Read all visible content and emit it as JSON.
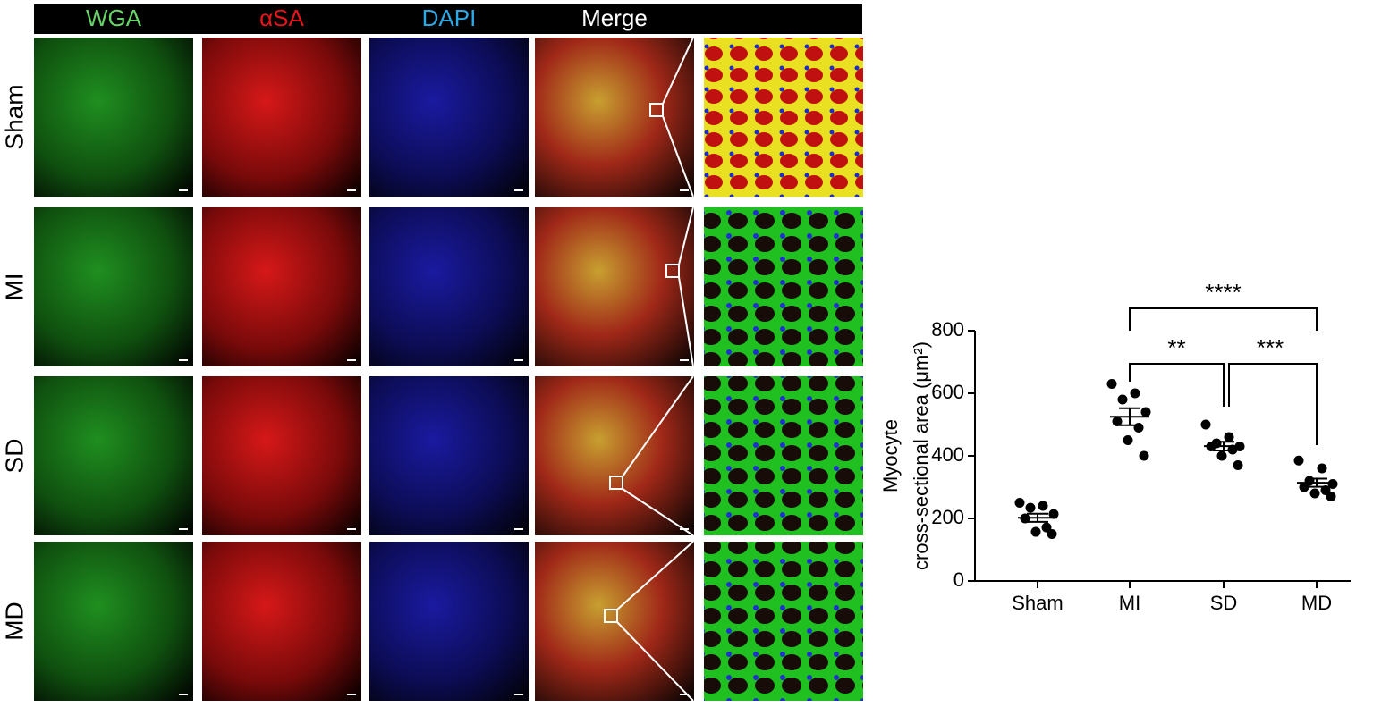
{
  "column_headers": [
    "WGA",
    "αSA",
    "DAPI",
    "Merge"
  ],
  "row_labels": [
    "Sham",
    "MI",
    "SD",
    "MD"
  ],
  "chart_data": {
    "type": "scatter",
    "y_label": [
      "Myocyte",
      "cross-sectional area (μm²)"
    ],
    "categories": [
      "Sham",
      "MI",
      "SD",
      "MD"
    ],
    "points": [
      [
        250,
        240,
        234,
        214,
        200,
        171,
        157,
        150
      ],
      [
        630,
        600,
        580,
        540,
        510,
        490,
        450,
        400
      ],
      [
        500,
        460,
        440,
        430,
        430,
        420,
        400,
        370
      ],
      [
        385,
        360,
        320,
        310,
        300,
        290,
        280,
        270
      ]
    ],
    "mean": [
      202,
      525,
      431,
      314
    ],
    "sem": [
      13,
      27,
      14,
      13
    ],
    "color": "#000000",
    "ylim": [
      0,
      800
    ],
    "yticks": [
      0,
      200,
      400,
      600,
      800
    ],
    "annotations": [
      {
        "label": "****",
        "from": "MI",
        "to": "MD"
      },
      {
        "label": "**",
        "from": "MI",
        "to": "SD"
      },
      {
        "label": "***",
        "from": "SD",
        "to": "MD"
      }
    ]
  }
}
